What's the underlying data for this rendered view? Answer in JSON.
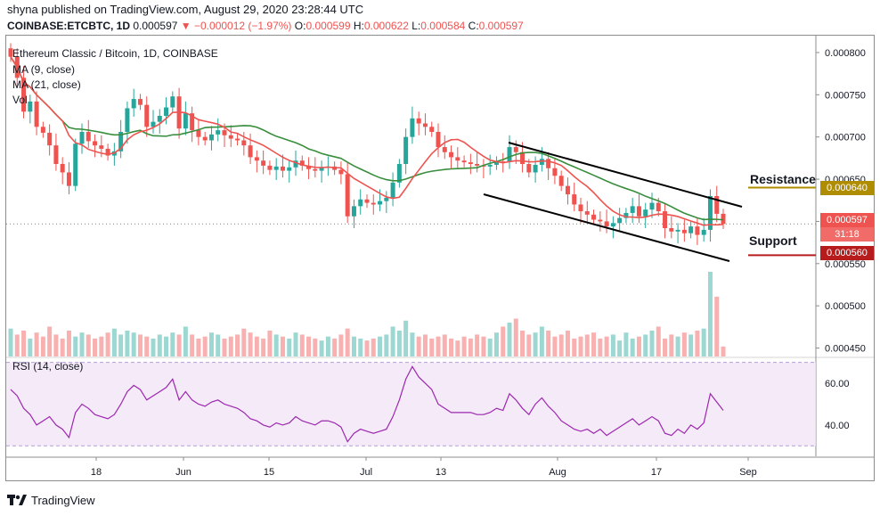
{
  "header": {
    "publisher_line": "shyna published on TradingView.com, August 29, 2020 23:28:44 UTC",
    "symbol": "COINBASE:ETCBTC, 1D",
    "last": "0.000597",
    "change": "−0.000012 (−1.97%)",
    "o_label": "O:",
    "o": "0.000599",
    "h_label": "H:",
    "h": "0.000622",
    "l_label": "L:",
    "l": "0.000584",
    "c_label": "C:",
    "c": "0.000597"
  },
  "chart_title": "Ethereum Classic / Bitcoin, 1D, COINBASE",
  "legend": {
    "ma9": "MA (9, close)",
    "ma21": "MA (21, close)",
    "vol": "Vol"
  },
  "rsi_label": "RSI (14, close)",
  "annotations": {
    "resistance": "Resistance",
    "support": "Support"
  },
  "price_tags": {
    "resistance": "0.000640",
    "current": "0.000597",
    "countdown": "31:18",
    "support": "0.000560"
  },
  "tradingview": "TradingView",
  "colors": {
    "up": "#26a69a",
    "down": "#ef5350",
    "ma9": "#ef5350",
    "ma21": "#388e3c",
    "rsi": "#9c27b0",
    "resistance": "#b08d00",
    "support": "#b71c1c"
  },
  "chart_data": {
    "type": "candlestick",
    "price_axis": {
      "ticks": [
        "0.000800",
        "0.000750",
        "0.000700",
        "0.000650",
        "0.000600",
        "0.000550",
        "0.000500",
        "0.000450"
      ],
      "range": [
        0.00044,
        0.00082
      ]
    },
    "rsi_axis": {
      "ticks": [
        "60.00",
        "40.00"
      ],
      "range": [
        25,
        72
      ],
      "bands": [
        70,
        30
      ]
    },
    "x_labels": [
      "18",
      "Jun",
      "15",
      "Jul",
      "13",
      "Aug",
      "17",
      "Sep"
    ],
    "closes": [
      0.000795,
      0.00077,
      0.00073,
      0.000742,
      0.000712,
      0.000705,
      0.00069,
      0.000668,
      0.000658,
      0.000642,
      0.000692,
      0.000706,
      0.000695,
      0.00069,
      0.000686,
      0.000678,
      0.000683,
      0.000706,
      0.000734,
      0.000745,
      0.000738,
      0.000712,
      0.000718,
      0.000725,
      0.000735,
      0.000748,
      0.00071,
      0.000728,
      0.000708,
      0.0007,
      0.000696,
      0.000703,
      0.000708,
      0.000702,
      0.000698,
      0.000696,
      0.00069,
      0.000676,
      0.000672,
      0.000666,
      0.000661,
      0.000665,
      0.00066,
      0.000664,
      0.000672,
      0.000666,
      0.000662,
      0.00066,
      0.000664,
      0.000665,
      0.000661,
      0.000656,
      0.000606,
      0.000618,
      0.000626,
      0.000622,
      0.00062,
      0.000624,
      0.000628,
      0.000646,
      0.000668,
      0.0007,
      0.000722,
      0.000716,
      0.000712,
      0.000706,
      0.000688,
      0.000682,
      0.000676,
      0.000672,
      0.00067,
      0.000668,
      0.000666,
      0.000665,
      0.000667,
      0.000671,
      0.00067,
      0.000688,
      0.000682,
      0.000668,
      0.000658,
      0.000667,
      0.000674,
      0.000663,
      0.000654,
      0.000642,
      0.000632,
      0.00062,
      0.000612,
      0.000608,
      0.000602,
      0.0006,
      0.000594,
      0.000598,
      0.000604,
      0.00061,
      0.000618,
      0.000606,
      0.000614,
      0.000622,
      0.000612,
      0.000592,
      0.000588,
      0.00059,
      0.000586,
      0.000594,
      0.000584,
      0.00059,
      0.00063,
      0.000609,
      0.000597
    ],
    "volumes": [
      28,
      22,
      26,
      18,
      24,
      20,
      30,
      22,
      18,
      26,
      20,
      24,
      22,
      18,
      20,
      24,
      28,
      22,
      26,
      24,
      22,
      20,
      18,
      22,
      20,
      24,
      22,
      30,
      22,
      18,
      20,
      24,
      22,
      18,
      20,
      22,
      28,
      24,
      20,
      18,
      26,
      22,
      20,
      18,
      24,
      22,
      20,
      18,
      16,
      20,
      18,
      22,
      28,
      20,
      18,
      16,
      18,
      20,
      22,
      30,
      26,
      36,
      24,
      20,
      22,
      18,
      20,
      22,
      18,
      16,
      20,
      18,
      22,
      20,
      18,
      24,
      30,
      34,
      38,
      26,
      22,
      24,
      30,
      26,
      20,
      22,
      26,
      18,
      20,
      22,
      24,
      18,
      20,
      22,
      16,
      24,
      18,
      20,
      22,
      26,
      30,
      18,
      22,
      20,
      24,
      22,
      26,
      28,
      85,
      60,
      10
    ],
    "rsi": [
      57,
      54,
      48,
      45,
      40,
      42,
      44,
      40,
      38,
      34,
      46,
      50,
      48,
      45,
      44,
      43,
      45,
      50,
      56,
      59,
      57,
      52,
      54,
      56,
      58,
      62,
      52,
      56,
      52,
      50,
      49,
      51,
      52,
      50,
      49,
      48,
      46,
      43,
      42,
      40,
      39,
      41,
      40,
      41,
      44,
      42,
      41,
      40,
      42,
      42,
      41,
      39,
      32,
      36,
      38,
      37,
      36,
      37,
      38,
      44,
      52,
      62,
      68,
      63,
      60,
      57,
      50,
      48,
      46,
      46,
      46,
      46,
      45,
      45,
      46,
      48,
      47,
      55,
      52,
      48,
      45,
      50,
      53,
      49,
      46,
      42,
      40,
      38,
      37,
      38,
      36,
      38,
      35,
      37,
      39,
      41,
      43,
      40,
      42,
      44,
      42,
      36,
      35,
      38,
      36,
      40,
      38,
      41,
      55,
      51,
      47
    ]
  }
}
